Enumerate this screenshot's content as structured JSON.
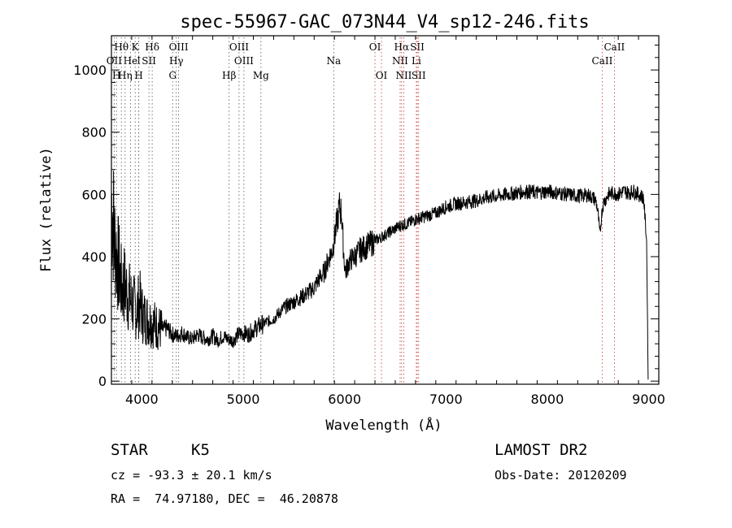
{
  "chart_data": {
    "type": "line",
    "title": "spec-55967-GAC_073N44_V4_sp12-246.fits",
    "xlabel": "Wavelength (Å)",
    "ylabel": "Flux (relative)",
    "xlim": [
      3700,
      9100
    ],
    "ylim": [
      -10,
      1110
    ],
    "xticks": [
      4000,
      5000,
      6000,
      7000,
      8000,
      9000
    ],
    "xtick_labels": [
      "4000",
      "5000",
      "6000",
      "7000",
      "8000",
      "9000"
    ],
    "yticks": [
      0,
      200,
      400,
      600,
      800,
      1000
    ],
    "ytick_labels": [
      "0",
      "200",
      "400",
      "600",
      "800",
      "1000"
    ],
    "grid": false,
    "legend": "none",
    "series": [
      {
        "x": [
          3700,
          3715,
          3730,
          3745,
          3760,
          3780,
          3800,
          3830,
          3860,
          3890,
          3920,
          3950,
          3980,
          4010,
          4050,
          4100,
          4150,
          4200,
          4250,
          4300,
          4350,
          4400,
          4450,
          4500,
          4550,
          4600,
          4650,
          4700,
          4750,
          4800,
          4850,
          4900,
          4950,
          5000,
          5050,
          5100,
          5150,
          5200,
          5300,
          5400,
          5500,
          5600,
          5700,
          5750,
          5800,
          5850,
          5880,
          5900,
          5920,
          5950,
          5970,
          5990,
          6000,
          6010,
          6020,
          6040,
          6060,
          6100,
          6150,
          6200,
          6250,
          6300,
          6350,
          6400,
          6450,
          6500,
          6550,
          6600,
          6650,
          6700,
          6750,
          6800,
          6850,
          6900,
          7000,
          7100,
          7200,
          7300,
          7400,
          7500,
          7600,
          7700,
          7800,
          7900,
          8000,
          8100,
          8200,
          8300,
          8400,
          8450,
          8480,
          8500,
          8520,
          8540,
          8560,
          8580,
          8600,
          8650,
          8700,
          8750,
          8800,
          8850,
          8900,
          8950,
          8980,
          8995
        ],
        "y": [
          580,
          540,
          450,
          420,
          390,
          350,
          300,
          310,
          280,
          260,
          240,
          230,
          250,
          210,
          200,
          190,
          175,
          165,
          170,
          150,
          145,
          155,
          140,
          135,
          150,
          140,
          135,
          145,
          130,
          145,
          135,
          130,
          150,
          155,
          150,
          165,
          175,
          185,
          200,
          235,
          255,
          275,
          300,
          330,
          350,
          400,
          420,
          460,
          500,
          560,
          540,
          420,
          380,
          350,
          360,
          380,
          390,
          400,
          420,
          430,
          440,
          450,
          460,
          470,
          480,
          490,
          500,
          505,
          510,
          520,
          525,
          530,
          535,
          540,
          560,
          570,
          575,
          580,
          590,
          595,
          600,
          605,
          610,
          605,
          610,
          605,
          600,
          595,
          598,
          590,
          580,
          540,
          470,
          550,
          580,
          585,
          600,
          605,
          600,
          610,
          605,
          610,
          600,
          590,
          450,
          5
        ]
      }
    ],
    "line_markers": [
      {
        "label": "Hθ",
        "x": 3798,
        "row": 1,
        "color": "#000000"
      },
      {
        "label": "K",
        "x": 3934,
        "row": 1,
        "color": "#000000"
      },
      {
        "label": "Hδ",
        "x": 4102,
        "row": 1,
        "color": "#000000"
      },
      {
        "label": "OIII",
        "x": 4363,
        "row": 1,
        "color": "#000000"
      },
      {
        "label": "OIII",
        "x": 4959,
        "row": 1,
        "color": "#000000"
      },
      {
        "label": "OI",
        "x": 6300,
        "row": 1,
        "color": "#000000"
      },
      {
        "label": "Hα",
        "x": 6563,
        "row": 1,
        "color": "#000000"
      },
      {
        "label": "SII",
        "x": 6717,
        "row": 1,
        "color": "#000000"
      },
      {
        "label": "CaII",
        "x": 8662,
        "row": 1,
        "color": "#000000"
      },
      {
        "label": "OII",
        "x": 3727,
        "row": 2,
        "color": "#000000"
      },
      {
        "label": "He",
        "x": 3888,
        "row": 2,
        "color": "#000000"
      },
      {
        "label": "I",
        "x": 3970,
        "row": 2,
        "color": "#000000"
      },
      {
        "label": "SII",
        "x": 4070,
        "row": 2,
        "color": "#000000"
      },
      {
        "label": "Hγ",
        "x": 4340,
        "row": 2,
        "color": "#000000"
      },
      {
        "label": "OIII",
        "x": 5007,
        "row": 2,
        "color": "#000000"
      },
      {
        "label": "Na",
        "x": 5893,
        "row": 2,
        "color": "#000000"
      },
      {
        "label": "NII",
        "x": 6548,
        "row": 2,
        "color": "#000000"
      },
      {
        "label": "Li",
        "x": 6708,
        "row": 2,
        "color": "#000000"
      },
      {
        "label": "CaII",
        "x": 8542,
        "row": 2,
        "color": "#000000"
      },
      {
        "label": "H",
        "x": 3750,
        "row": 3,
        "color": "#000000"
      },
      {
        "label": "Hη",
        "x": 3835,
        "row": 3,
        "color": "#000000"
      },
      {
        "label": "H",
        "x": 3970,
        "row": 3,
        "color": "#000000"
      },
      {
        "label": "G",
        "x": 4304,
        "row": 3,
        "color": "#000000"
      },
      {
        "label": "Hβ",
        "x": 4861,
        "row": 3,
        "color": "#000000"
      },
      {
        "label": "Mg",
        "x": 5175,
        "row": 3,
        "color": "#000000"
      },
      {
        "label": "OI",
        "x": 6364,
        "row": 3,
        "color": "#000000"
      },
      {
        "label": "NII",
        "x": 6584,
        "row": 3,
        "color": "#000000"
      },
      {
        "label": "SII",
        "x": 6731,
        "row": 3,
        "color": "#000000"
      }
    ],
    "red_line_color": "#c0392b",
    "black_line_color": "#555555"
  },
  "info": {
    "class_label": "STAR",
    "subclass": "K5",
    "survey": "LAMOST DR2",
    "velocity": "cz = -93.3 ± 20.1 km/s",
    "obs_date": "Obs-Date: 20120209",
    "coords": "RA =  74.97180, DEC =  46.20878"
  }
}
